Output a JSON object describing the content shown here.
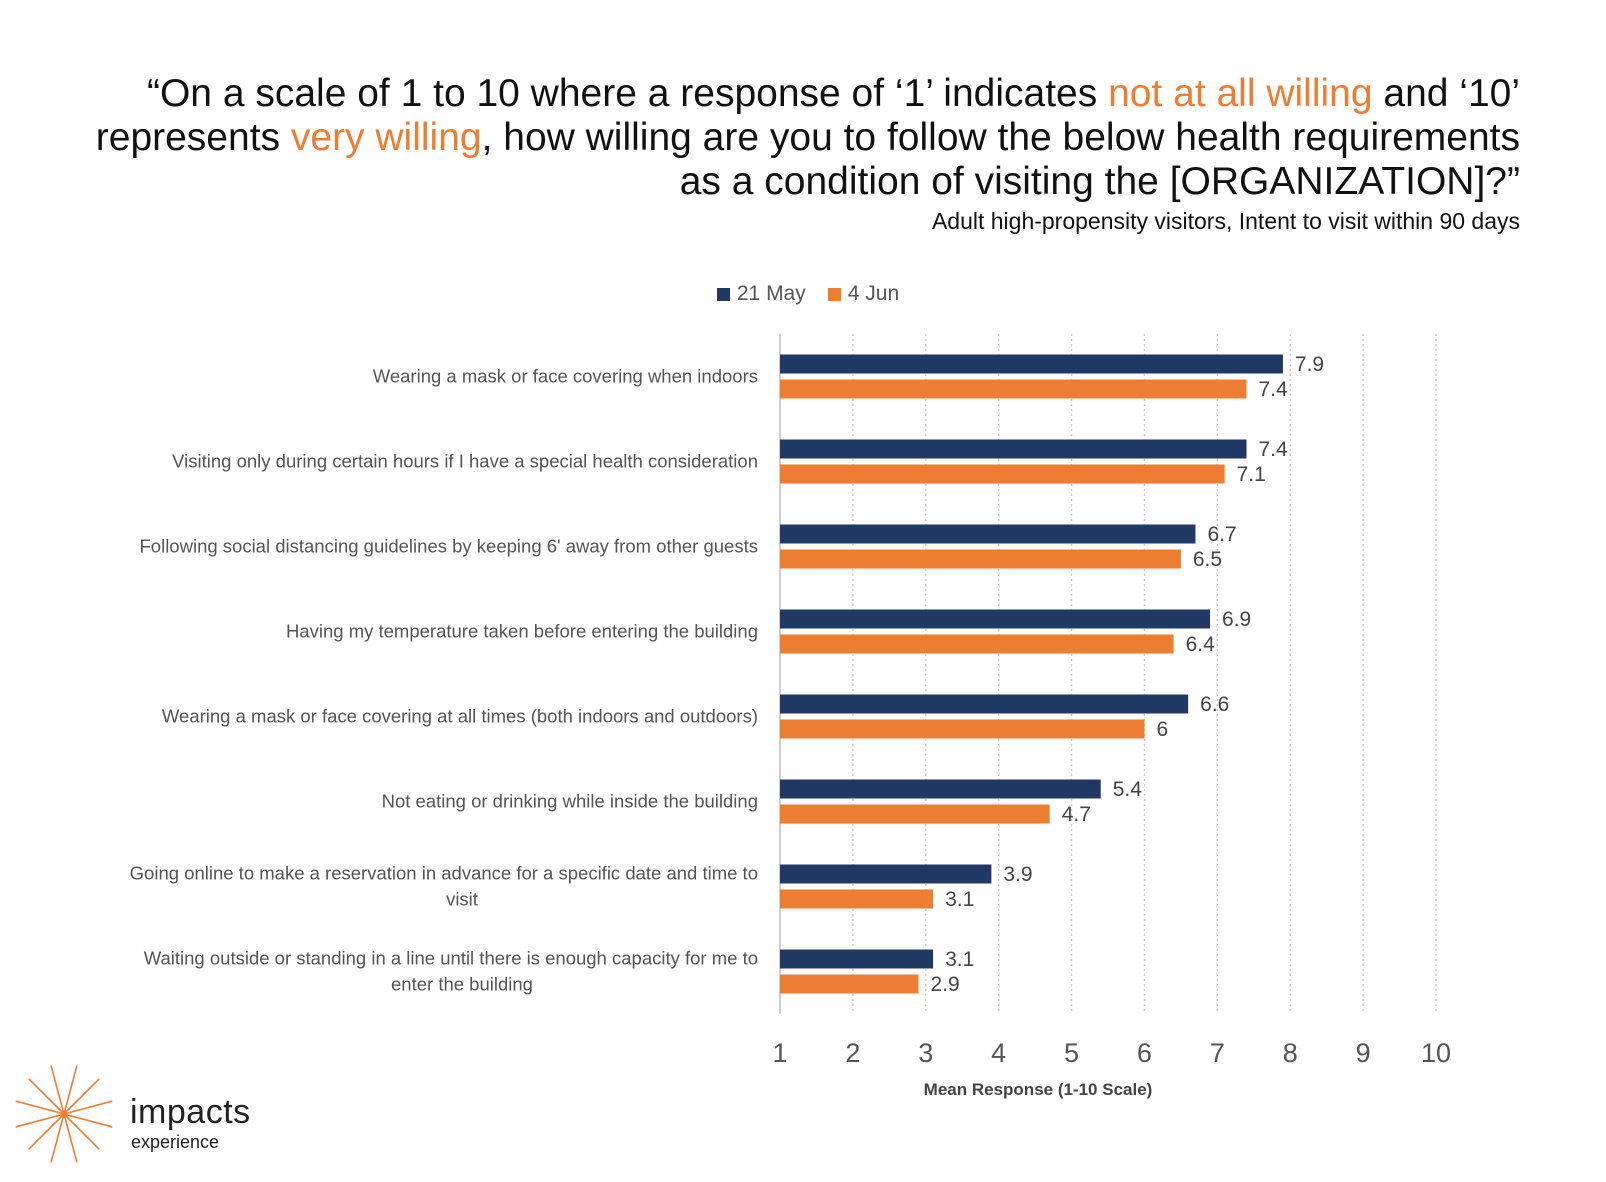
{
  "header": {
    "title_parts": [
      {
        "text": "“On a scale of 1 to 10 where a response of ‘1’ indicates ",
        "highlight": false
      },
      {
        "text": "not at all willing",
        "highlight": true
      },
      {
        "text": " and ‘10’ represents ",
        "highlight": false
      },
      {
        "text": "very willing",
        "highlight": true
      },
      {
        "text": ", how willing are you to follow the below health requirements as a condition of visiting the [ORGANIZATION]?”",
        "highlight": false
      }
    ],
    "subtitle": "Adult high-propensity visitors, Intent to visit within 90 days",
    "highlight_color": "#ED7D31"
  },
  "logo": {
    "name": "impacts",
    "sub": "experience",
    "icon": "sunburst-icon",
    "color": "#ED7D31"
  },
  "chart_data": {
    "type": "bar",
    "orientation": "horizontal",
    "categories": [
      "Wearing a mask or face covering when indoors",
      "Visiting only during certain hours if I have a special health consideration",
      "Following social distancing guidelines by keeping 6' away from other guests",
      "Having my temperature taken before entering the building",
      "Wearing a mask or face covering at all times (both indoors and outdoors)",
      "Not eating or drinking while inside the building",
      "Going online to make a reservation in advance for a specific date and time to visit",
      "Waiting outside or standing in a line until there is enough capacity for me to enter the building"
    ],
    "series": [
      {
        "name": "21 May",
        "color": "#203864",
        "values": [
          7.9,
          7.4,
          6.7,
          6.9,
          6.6,
          5.4,
          3.9,
          3.1
        ]
      },
      {
        "name": "4 Jun",
        "color": "#ED7D31",
        "values": [
          7.4,
          7.1,
          6.5,
          6.4,
          6,
          4.7,
          3.1,
          2.9
        ]
      }
    ],
    "xlabel": "Mean Response (1-10 Scale)",
    "xlim": [
      1,
      10
    ],
    "xticks": [
      1,
      2,
      3,
      4,
      5,
      6,
      7,
      8,
      9,
      10
    ],
    "grid": "vertical-dotted",
    "legend_position": "top-center",
    "data_labels": true
  }
}
